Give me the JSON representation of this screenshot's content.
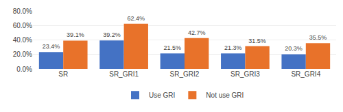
{
  "chart_data": {
    "type": "bar",
    "categories": [
      "SR",
      "SR_GRI1",
      "SR_GRI2",
      "SR_GRI3",
      "SR_GRI4"
    ],
    "series": [
      {
        "name": "Use GRI",
        "color": "#4472C4",
        "values": [
          23.4,
          39.2,
          21.5,
          21.3,
          20.3
        ],
        "value_labels": [
          "23.4%",
          "39.2%",
          "21.5%",
          "21.3%",
          "20.3%"
        ]
      },
      {
        "name": "Not use GRI",
        "color": "#E8722A",
        "values": [
          39.1,
          62.4,
          42.7,
          31.5,
          35.5
        ],
        "value_labels": [
          "39.1%",
          "62.4%",
          "42.7%",
          "31.5%",
          "35.5%"
        ]
      }
    ],
    "ylim": [
      0,
      80
    ],
    "yticks": [
      {
        "value": 0,
        "label": "0.0%"
      },
      {
        "value": 20,
        "label": "20.0%"
      },
      {
        "value": 40,
        "label": "40.0%"
      },
      {
        "value": 60,
        "label": "60.0%"
      },
      {
        "value": 80,
        "label": "80.0%"
      }
    ],
    "grid": true,
    "legend": "bottom",
    "data_labels": true
  }
}
